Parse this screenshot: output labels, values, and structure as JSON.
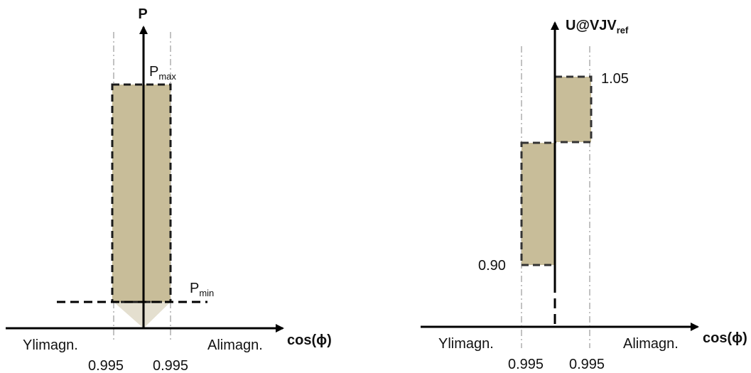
{
  "colors": {
    "region_fill": "#c8bd99",
    "region_border": "#1a1a1a",
    "triangle_fill": "#e4dfcf",
    "guide_line": "#999999",
    "axis": "#000000"
  },
  "left_panel": {
    "y_axis_label": "P",
    "x_axis_label": "cos(ϕ)",
    "pmax_main": "P",
    "pmax_sub": "max",
    "pmin_main": "P",
    "pmin_sub": "min",
    "left_side_label": "Ylimagn.",
    "right_side_label": "Alimagn.",
    "left_tick": "0.995",
    "right_tick": "0.995"
  },
  "right_panel": {
    "y_axis_main": "U@VJV",
    "y_axis_sub": "ref",
    "x_axis_label": "cos(ϕ)",
    "upper_value": "1.05",
    "lower_value": "0.90",
    "left_side_label": "Ylimagn.",
    "right_side_label": "Alimagn.",
    "left_tick": "0.995",
    "right_tick": "0.995"
  }
}
